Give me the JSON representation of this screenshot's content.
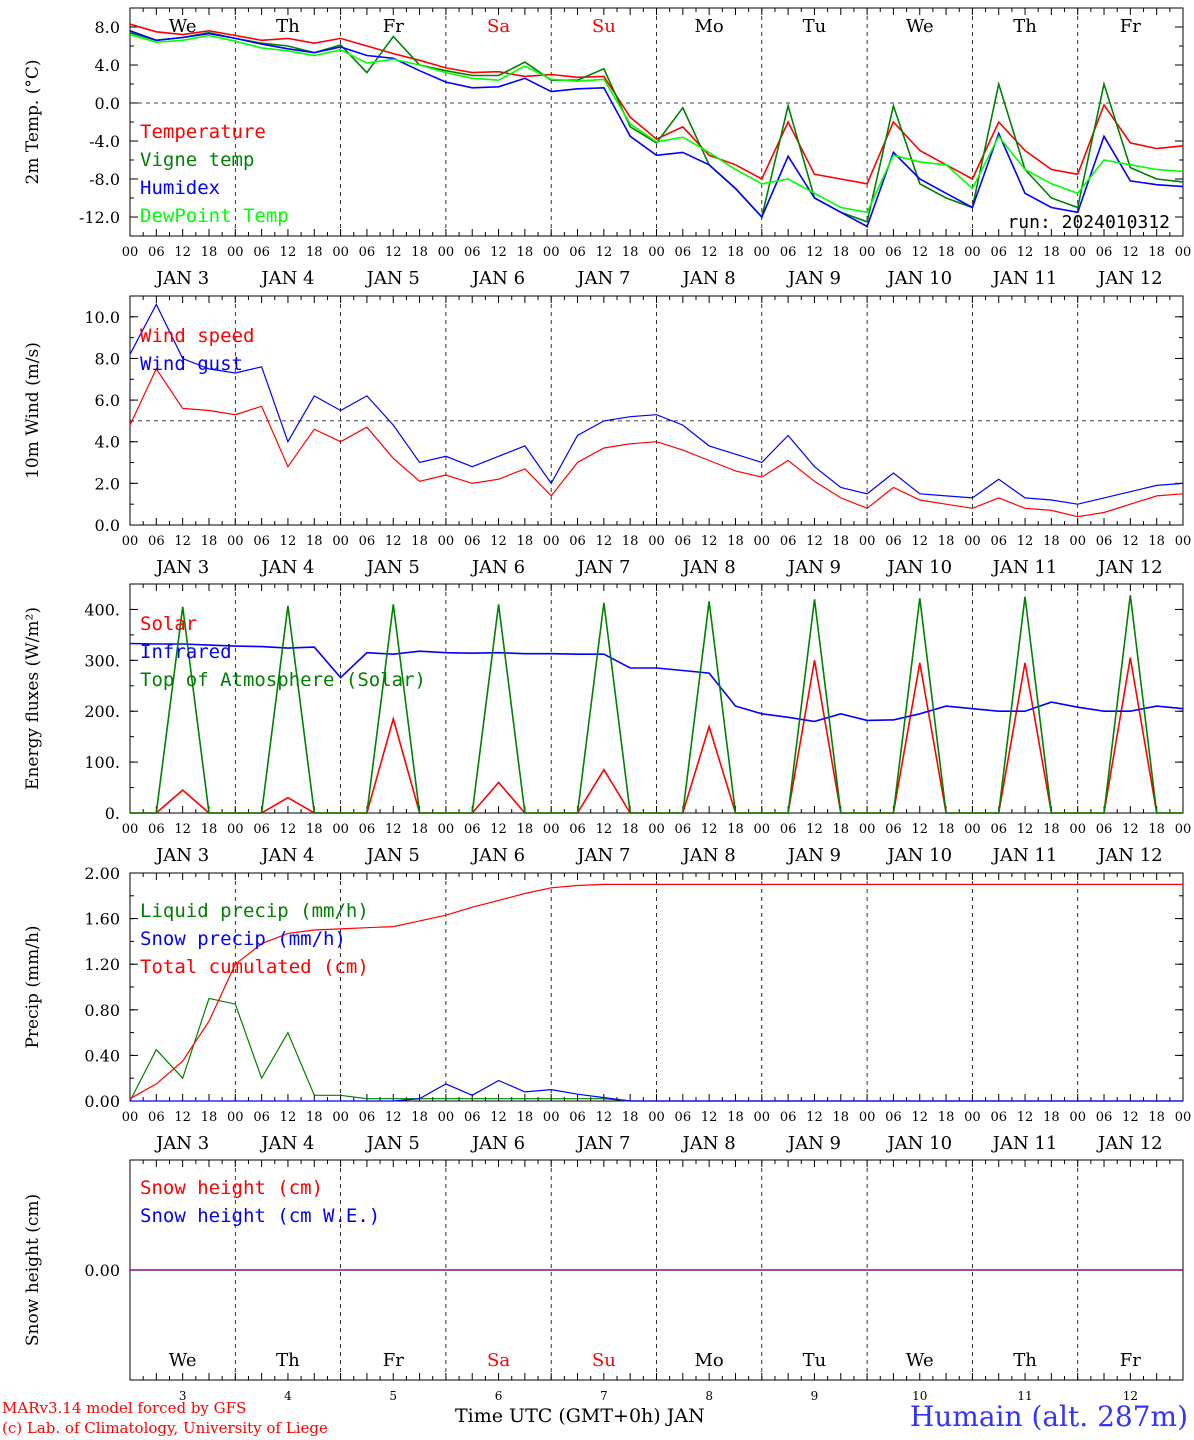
{
  "chart_data": [
    {
      "type": "line",
      "ylabel": "2m Temp. (°C)",
      "ylim": [
        -14,
        10
      ],
      "yticks": [
        "8.0",
        "4.0",
        "0.0",
        "-4.0",
        "-8.0",
        "-12.0"
      ],
      "yticks_values": [
        8,
        4,
        0,
        -4,
        -8,
        -12
      ],
      "ref_line": 0,
      "run_label": "run: 2024010312",
      "x_hours": [
        0,
        6,
        12,
        18,
        24,
        30,
        36,
        42,
        48,
        54,
        60,
        66,
        72,
        78,
        84,
        90,
        96,
        102,
        108,
        114,
        120,
        126,
        132,
        138,
        144,
        150,
        156,
        162,
        168,
        174,
        180,
        186,
        192,
        198,
        204,
        210,
        216,
        222,
        228,
        234,
        240
      ],
      "legend": [
        "Temperature",
        "Vigne temp",
        "Humidex",
        "DewPoint Temp"
      ],
      "series": [
        {
          "name": "Temperature",
          "color": "#ff0000",
          "values": [
            8.3,
            7.5,
            7.2,
            7.6,
            7.1,
            6.6,
            6.8,
            6.3,
            6.8,
            6.0,
            5.2,
            4.5,
            3.7,
            3.2,
            3.3,
            2.8,
            3.0,
            2.7,
            2.8,
            -1.5,
            -3.8,
            -2.5,
            -5.5,
            -6.5,
            -8.0,
            -2.0,
            -7.5,
            -8.0,
            -8.5,
            -2.0,
            -5.0,
            -6.5,
            -8.0,
            -2.0,
            -5.0,
            -7.0,
            -7.5,
            -0.2,
            -4.2,
            -4.8,
            -4.5
          ]
        },
        {
          "name": "Vigne temp",
          "color": "#008000",
          "values": [
            7.4,
            6.6,
            6.9,
            7.4,
            6.8,
            6.3,
            6.0,
            5.3,
            6.1,
            3.2,
            7.0,
            4.0,
            3.4,
            2.9,
            2.9,
            4.3,
            2.4,
            2.4,
            3.6,
            -2.5,
            -4.2,
            -0.5,
            -6.5,
            -9.0,
            -12.0,
            -0.3,
            -10.0,
            -11.5,
            -12.5,
            -0.3,
            -8.5,
            -10.0,
            -11.0,
            2.0,
            -7.0,
            -10.0,
            -11.0,
            2.0,
            -6.8,
            -8.0,
            -8.3
          ]
        },
        {
          "name": "Humidex",
          "color": "#0000ff",
          "values": [
            7.6,
            6.6,
            6.9,
            7.3,
            6.8,
            6.2,
            5.7,
            5.3,
            5.9,
            5.0,
            4.7,
            3.4,
            2.2,
            1.6,
            1.7,
            2.6,
            1.2,
            1.5,
            1.6,
            -3.5,
            -5.5,
            -5.2,
            -6.5,
            -9.0,
            -12.0,
            -5.6,
            -10.0,
            -11.5,
            -13.0,
            -5.2,
            -8.0,
            -9.5,
            -11.0,
            -3.2,
            -9.5,
            -11.0,
            -11.5,
            -3.5,
            -8.2,
            -8.6,
            -8.8
          ]
        },
        {
          "name": "DewPoint Temp",
          "color": "#00ff00",
          "values": [
            7.2,
            6.4,
            6.6,
            7.1,
            6.5,
            5.8,
            5.5,
            5.0,
            5.6,
            4.2,
            4.6,
            4.0,
            3.2,
            2.6,
            2.4,
            3.9,
            2.5,
            2.3,
            2.5,
            -2.2,
            -4.1,
            -3.6,
            -5.2,
            -7.0,
            -8.5,
            -8.0,
            -9.5,
            -11.0,
            -11.5,
            -5.5,
            -6.2,
            -6.5,
            -9.0,
            -3.5,
            -7.0,
            -8.5,
            -9.5,
            -6.0,
            -6.5,
            -7.0,
            -7.2
          ]
        }
      ]
    },
    {
      "type": "line",
      "ylabel": "10m Wind (m/s)",
      "ylim": [
        0,
        11
      ],
      "yticks": [
        "10.0",
        "8.0",
        "6.0",
        "4.0",
        "2.0",
        "0.0"
      ],
      "yticks_values": [
        10,
        8,
        6,
        4,
        2,
        0
      ],
      "ref_line": 5,
      "x_hours": [
        0,
        6,
        12,
        18,
        24,
        30,
        36,
        42,
        48,
        54,
        60,
        66,
        72,
        78,
        84,
        90,
        96,
        102,
        108,
        114,
        120,
        126,
        132,
        138,
        144,
        150,
        156,
        162,
        168,
        174,
        180,
        186,
        192,
        198,
        204,
        210,
        216,
        222,
        228,
        234,
        240
      ],
      "legend": [
        "Wind speed",
        "Wind gust"
      ],
      "series": [
        {
          "name": "Wind speed",
          "color": "#ff0000",
          "values": [
            4.8,
            7.5,
            5.6,
            5.5,
            5.3,
            5.7,
            2.8,
            4.6,
            4.0,
            4.7,
            3.2,
            2.1,
            2.4,
            2.0,
            2.2,
            2.7,
            1.4,
            3.0,
            3.7,
            3.9,
            4.0,
            3.6,
            3.1,
            2.6,
            2.3,
            3.1,
            2.1,
            1.3,
            0.8,
            1.8,
            1.2,
            1.0,
            0.8,
            1.3,
            0.8,
            0.7,
            0.4,
            0.6,
            1.0,
            1.4,
            1.5
          ]
        },
        {
          "name": "Wind gust",
          "color": "#0000ff",
          "values": [
            8.2,
            10.6,
            8.0,
            7.5,
            7.3,
            7.6,
            4.0,
            6.2,
            5.5,
            6.2,
            4.8,
            3.0,
            3.3,
            2.8,
            3.3,
            3.8,
            2.0,
            4.3,
            5.0,
            5.2,
            5.3,
            4.8,
            3.8,
            3.4,
            3.0,
            4.3,
            2.8,
            1.8,
            1.5,
            2.5,
            1.5,
            1.4,
            1.3,
            2.2,
            1.3,
            1.2,
            1.0,
            1.3,
            1.6,
            1.9,
            2.0
          ]
        }
      ]
    },
    {
      "type": "line",
      "ylabel": "Energy fluxes (W/m²)",
      "ylim": [
        0,
        450
      ],
      "yticks": [
        "400.",
        "300.",
        "200.",
        "100.",
        "0."
      ],
      "yticks_values": [
        400,
        300,
        200,
        100,
        0
      ],
      "x_hours": [
        0,
        6,
        12,
        18,
        24,
        30,
        36,
        42,
        48,
        54,
        60,
        66,
        72,
        78,
        84,
        90,
        96,
        102,
        108,
        114,
        120,
        126,
        132,
        138,
        144,
        150,
        156,
        162,
        168,
        174,
        180,
        186,
        192,
        198,
        204,
        210,
        216,
        222,
        228,
        234,
        240
      ],
      "legend": [
        "Solar",
        "Infrared",
        "Top of Atmosphere (Solar)"
      ],
      "series": [
        {
          "name": "Solar",
          "color": "#ff0000",
          "values": [
            0,
            0,
            45,
            0,
            0,
            0,
            30,
            0,
            0,
            0,
            185,
            0,
            0,
            0,
            60,
            0,
            0,
            0,
            85,
            0,
            0,
            0,
            170,
            0,
            0,
            0,
            300,
            0,
            0,
            0,
            295,
            0,
            0,
            0,
            295,
            0,
            0,
            0,
            305,
            0,
            0
          ]
        },
        {
          "name": "Infrared",
          "color": "#0000ff",
          "values": [
            333,
            332,
            332,
            330,
            328,
            327,
            324,
            326,
            266,
            315,
            312,
            318,
            315,
            314,
            315,
            313,
            313,
            312,
            312,
            285,
            285,
            280,
            275,
            210,
            195,
            188,
            180,
            195,
            182,
            183,
            195,
            210,
            205,
            200,
            200,
            218,
            208,
            200,
            200,
            210,
            205
          ]
        },
        {
          "name": "Top of Atmosphere (Solar)",
          "color": "#008000",
          "values": [
            0,
            0,
            405,
            0,
            0,
            0,
            407,
            0,
            0,
            0,
            410,
            0,
            0,
            0,
            410,
            0,
            0,
            0,
            413,
            0,
            0,
            0,
            416,
            0,
            0,
            0,
            420,
            0,
            0,
            0,
            422,
            0,
            0,
            0,
            425,
            0,
            0,
            0,
            428,
            0,
            0
          ]
        }
      ]
    },
    {
      "type": "line",
      "ylabel": "Precip (mm/h)",
      "ylim": [
        0,
        2.0
      ],
      "yticks": [
        "2.00",
        "1.60",
        "1.20",
        "0.80",
        "0.40",
        "0.00"
      ],
      "yticks_values": [
        2.0,
        1.6,
        1.2,
        0.8,
        0.4,
        0.0
      ],
      "x_hours": [
        0,
        6,
        12,
        18,
        24,
        30,
        36,
        42,
        48,
        54,
        60,
        66,
        72,
        78,
        84,
        90,
        96,
        102,
        108,
        114,
        120,
        126,
        132,
        138,
        144,
        150,
        156,
        162,
        168,
        174,
        180,
        186,
        192,
        198,
        204,
        210,
        216,
        222,
        228,
        234,
        240
      ],
      "legend": [
        "Liquid precip (mm/h)",
        "Snow precip (mm/h)",
        "Total cumulated (cm)"
      ],
      "series": [
        {
          "name": "Liquid precip (mm/h)",
          "color": "#008000",
          "values": [
            0.0,
            0.45,
            0.2,
            0.9,
            0.85,
            0.2,
            0.6,
            0.05,
            0.05,
            0.02,
            0.02,
            0.02,
            0.02,
            0.02,
            0.02,
            0.02,
            0.02,
            0.02,
            0.02,
            0.0,
            0.0,
            0.0,
            0.0,
            0.0,
            0.0,
            0.0,
            0.0,
            0.0,
            0.0,
            0.0,
            0.0,
            0.0,
            0.0,
            0.0,
            0.0,
            0.0,
            0.0,
            0.0,
            0.0,
            0.0,
            0.0
          ]
        },
        {
          "name": "Snow precip (mm/h)",
          "color": "#0000ff",
          "values": [
            0.0,
            0.0,
            0.0,
            0.0,
            0.0,
            0.0,
            0.0,
            0.0,
            0.0,
            0.0,
            0.0,
            0.02,
            0.15,
            0.05,
            0.18,
            0.08,
            0.1,
            0.06,
            0.03,
            0.0,
            0.0,
            0.0,
            0.0,
            0.0,
            0.0,
            0.0,
            0.0,
            0.0,
            0.0,
            0.0,
            0.0,
            0.0,
            0.0,
            0.0,
            0.0,
            0.0,
            0.0,
            0.0,
            0.0,
            0.0,
            0.0
          ]
        },
        {
          "name": "Total cumulated (cm)",
          "color": "#ff0000",
          "values": [
            0.02,
            0.15,
            0.35,
            0.7,
            1.2,
            1.38,
            1.47,
            1.5,
            1.51,
            1.52,
            1.53,
            1.58,
            1.63,
            1.7,
            1.76,
            1.82,
            1.87,
            1.89,
            1.9,
            1.9,
            1.9,
            1.9,
            1.9,
            1.9,
            1.9,
            1.9,
            1.9,
            1.9,
            1.9,
            1.9,
            1.9,
            1.9,
            1.9,
            1.9,
            1.9,
            1.9,
            1.9,
            1.9,
            1.9,
            1.9,
            1.9
          ]
        }
      ]
    },
    {
      "type": "line",
      "ylabel": "Snow height (cm)",
      "ylim": [
        -1,
        1
      ],
      "yticks": [
        "0.00"
      ],
      "yticks_values": [
        0
      ],
      "x_hours": [
        0,
        240
      ],
      "legend": [
        "Snow height (cm)",
        "Snow height (cm W.E.)"
      ],
      "series": [
        {
          "name": "Snow height (cm)",
          "color": "#ff0000",
          "values": [
            0,
            0
          ]
        },
        {
          "name": "Snow height (cm W.E.)",
          "color": "#0000ff",
          "values": [
            0,
            0
          ]
        }
      ]
    }
  ],
  "colors": {
    "weekday": "#000000",
    "weekend": "#ff0000",
    "purple": "#800080",
    "title": "#3333ff",
    "credit": "#ff0000"
  },
  "day_names": [
    "We",
    "Th",
    "Fr",
    "Sa",
    "Su",
    "Mo",
    "Tu",
    "We",
    "Th",
    "Fr"
  ],
  "day_weekend": [
    false,
    false,
    false,
    true,
    true,
    false,
    false,
    false,
    false,
    false
  ],
  "hour_labels": [
    "00",
    "06",
    "12",
    "18"
  ],
  "hour_label_end": "00",
  "month_label": "JAN",
  "day_numbers": [
    "3",
    "4",
    "5",
    "6",
    "7",
    "8",
    "9",
    "10",
    "11",
    "12"
  ],
  "x_axis_label": "Time UTC (GMT+0h) JAN",
  "credit_line1": "MARv3.14 model forced by GFS",
  "credit_line2": "(c) Lab. of Climatology, University of Liege",
  "station_title": "Humain (alt. 287m)"
}
